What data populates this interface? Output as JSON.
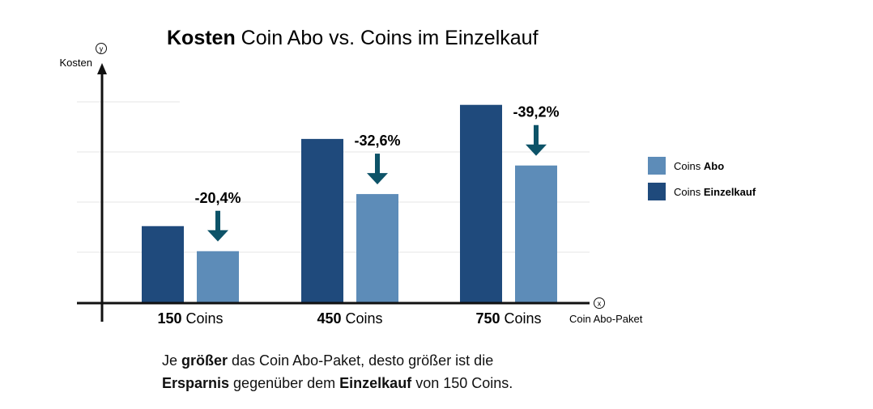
{
  "chart_data": {
    "type": "bar",
    "title_bold": "Kosten",
    "title_rest": " Coin Abo vs. Coins im Einzelkauf",
    "ylabel": "Kosten",
    "y_axis_marker": "y",
    "xlabel": "Coin Abo-Paket",
    "x_axis_marker": "x",
    "categories": [
      {
        "bold": "150",
        "rest": " Coins"
      },
      {
        "bold": "450",
        "rest": " Coins"
      },
      {
        "bold": "750",
        "rest": " Coins"
      }
    ],
    "series": [
      {
        "name_plain": "Coins ",
        "name_bold": "Einzelkauf",
        "color": "#1f4a7c",
        "values": [
          1.52,
          3.26,
          3.94
        ]
      },
      {
        "name_plain": "Coins ",
        "name_bold": "Abo",
        "color": "#5d8cb8",
        "values": [
          1.02,
          2.16,
          2.73
        ]
      }
    ],
    "savings_labels": [
      "-20,4%",
      "-32,6%",
      "-39,2%"
    ],
    "arrow_color": "#0d5368",
    "ylim": [
      0,
      4
    ],
    "grid": true,
    "legend_position": "right"
  },
  "caption": {
    "l1_a": "Je ",
    "l1_b": "größer",
    "l1_c": " das Coin Abo-Paket, desto größer ist die",
    "l2_a": "Ersparnis",
    "l2_b": " gegenüber dem ",
    "l2_c": "Einzelkauf",
    "l2_d": " von 150 Coins."
  }
}
